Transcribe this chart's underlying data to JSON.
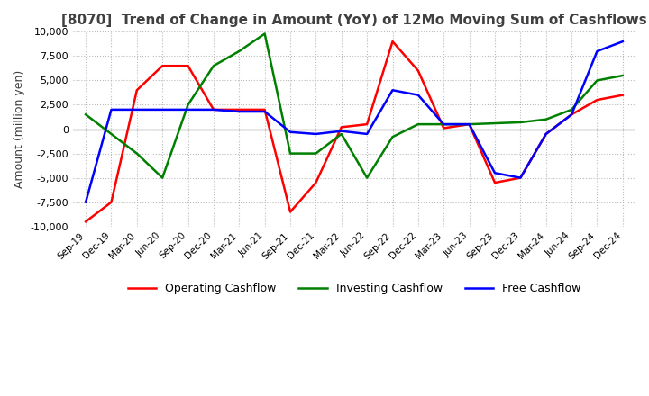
{
  "title": "[8070]  Trend of Change in Amount (YoY) of 12Mo Moving Sum of Cashflows",
  "ylabel": "Amount (million yen)",
  "ylim": [
    -10000,
    10000
  ],
  "yticks": [
    -10000,
    -7500,
    -5000,
    -2500,
    0,
    2500,
    5000,
    7500,
    10000
  ],
  "x_labels": [
    "Sep-19",
    "Dec-19",
    "Mar-20",
    "Jun-20",
    "Sep-20",
    "Dec-20",
    "Mar-21",
    "Jun-21",
    "Sep-21",
    "Dec-21",
    "Mar-22",
    "Jun-22",
    "Sep-22",
    "Dec-22",
    "Mar-23",
    "Jun-23",
    "Sep-23",
    "Dec-23",
    "Mar-24",
    "Jun-24",
    "Sep-24",
    "Dec-24"
  ],
  "operating": [
    -9500,
    -7500,
    4000,
    6500,
    6500,
    2000,
    2000,
    2000,
    -8500,
    -5500,
    200,
    500,
    9000,
    6000,
    100,
    500,
    -5500,
    -5000,
    -500,
    1500,
    3000,
    3500
  ],
  "investing": [
    1500,
    -500,
    -2500,
    -5000,
    2500,
    6500,
    8000,
    9800,
    -2500,
    -2500,
    -500,
    -5000,
    -800,
    500,
    500,
    500,
    600,
    700,
    1000,
    2000,
    5000,
    5500
  ],
  "free": [
    -7500,
    2000,
    2000,
    2000,
    2000,
    2000,
    1800,
    1800,
    -300,
    -500,
    -200,
    -500,
    4000,
    3500,
    500,
    500,
    -4500,
    -5000,
    -500,
    1500,
    8000,
    9000
  ],
  "operating_color": "#FF0000",
  "investing_color": "#008000",
  "free_color": "#0000FF",
  "background_color": "#FFFFFF",
  "grid_color": "#BBBBBB",
  "title_color": "#404040",
  "title_fontsize": 11,
  "ylabel_fontsize": 9,
  "tick_fontsize": 8,
  "xtick_fontsize": 7.5,
  "legend_fontsize": 9,
  "linewidth": 1.8
}
